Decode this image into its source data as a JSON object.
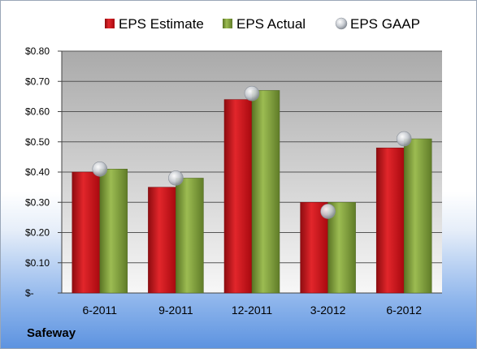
{
  "company": "Safeway",
  "colors": {
    "estimate": "#c8141b",
    "actual": "#7f9f3a",
    "gaap": "#c8ccd2",
    "plot_top": "#aaaaaa",
    "plot_bottom": "#f7f7f7",
    "gridline": "#555555"
  },
  "chart_data": {
    "type": "bar",
    "title": "",
    "xlabel": "",
    "ylabel": "",
    "categories": [
      "6-2011",
      "9-2011",
      "12-2011",
      "3-2012",
      "6-2012"
    ],
    "ylim": [
      0,
      0.8
    ],
    "yticks": [
      0,
      0.1,
      0.2,
      0.3,
      0.4,
      0.5,
      0.6,
      0.7,
      0.8
    ],
    "ytick_labels": [
      "$-",
      "$0.10",
      "$0.20",
      "$0.30",
      "$0.40",
      "$0.50",
      "$0.60",
      "$0.70",
      "$0.80"
    ],
    "grid": true,
    "legend_position": "top",
    "series": [
      {
        "name": "EPS Estimate",
        "kind": "bar",
        "values": [
          0.4,
          0.35,
          0.64,
          0.3,
          0.48
        ]
      },
      {
        "name": "EPS Actual",
        "kind": "bar",
        "values": [
          0.41,
          0.38,
          0.67,
          0.3,
          0.51
        ]
      },
      {
        "name": "EPS GAAP",
        "kind": "marker",
        "values": [
          0.41,
          0.38,
          0.66,
          0.27,
          0.51
        ]
      }
    ]
  }
}
